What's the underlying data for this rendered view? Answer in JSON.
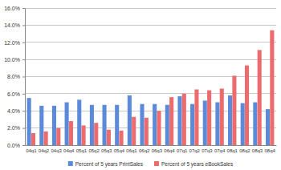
{
  "chart_data": {
    "type": "bar",
    "categories": [
      "04q1",
      "04q2",
      "04q3",
      "04q4",
      "05q1",
      "05q2",
      "05q3",
      "05q4",
      "06q1",
      "06q2",
      "06q3",
      "06q4",
      "07q1",
      "07q2",
      "07q3",
      "07q4",
      "08q1",
      "08q2",
      "08q3",
      "08q4"
    ],
    "series": [
      {
        "name": "Percent of 5 years PrintSales",
        "color": "#5b8ad8",
        "values": [
          5.5,
          4.6,
          4.6,
          5.0,
          5.3,
          4.7,
          4.7,
          4.7,
          5.8,
          4.8,
          4.8,
          4.7,
          5.7,
          4.8,
          5.2,
          5.0,
          5.8,
          4.9,
          5.0,
          4.2
        ]
      },
      {
        "name": "Percent of 5 years eBookSales",
        "color": "#ec6b6d",
        "values": [
          1.4,
          1.6,
          2.0,
          2.8,
          2.3,
          2.6,
          1.8,
          1.7,
          3.3,
          3.2,
          4.0,
          5.6,
          6.0,
          6.5,
          6.4,
          6.6,
          8.1,
          9.3,
          11.1,
          13.4
        ]
      }
    ],
    "ylim": [
      0,
      16
    ],
    "yticks": [
      {
        "value": 0,
        "label": "0.0%"
      },
      {
        "value": 2,
        "label": "2.0%"
      },
      {
        "value": 4,
        "label": "4.0%"
      },
      {
        "value": 6,
        "label": "6.0%"
      },
      {
        "value": 8,
        "label": "8.0%"
      },
      {
        "value": 10,
        "label": "10.0%"
      },
      {
        "value": 12,
        "label": "12.0%"
      },
      {
        "value": 14,
        "label": "14.0%"
      },
      {
        "value": 16,
        "label": "16.0%"
      }
    ],
    "grid": true,
    "legend": "bottom"
  }
}
